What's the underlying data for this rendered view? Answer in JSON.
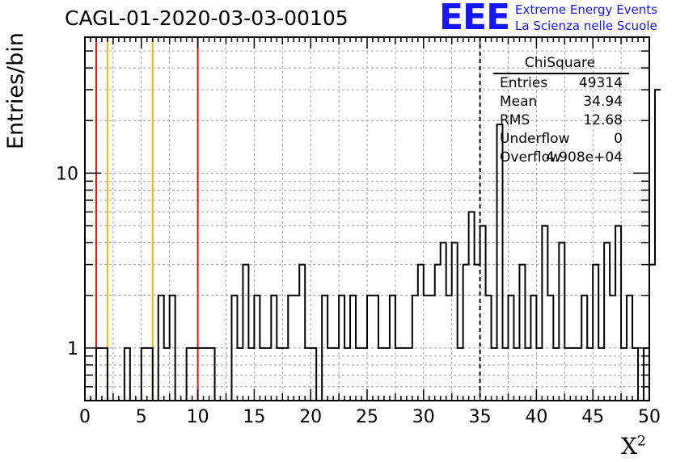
{
  "title": "CAGL-01-2020-03-03-00105",
  "logo": {
    "mark": "EEE",
    "line1": "Extreme Energy Events",
    "line2": "La Scienza nelle Scuole"
  },
  "stats": {
    "title": "ChiSquare",
    "rows": [
      {
        "key": "Entries",
        "value": "49314"
      },
      {
        "key": "Mean",
        "value": "34.94"
      },
      {
        "key": "RMS",
        "value": "12.68"
      },
      {
        "key": "Underflow",
        "value": "0"
      },
      {
        "key": "Overflow",
        "value": "4.908e+04"
      }
    ]
  },
  "colors": {
    "red_line": "#e8140e",
    "yellow_line": "#f5b800",
    "grid": "#a0a0a0",
    "logo": "#1515ff"
  },
  "chart_data": {
    "type": "bar",
    "histogram": true,
    "title": "CAGL-01-2020-03-03-00105",
    "xlabel": "X²",
    "ylabel": "Entries/bin",
    "xlim": [
      0,
      50
    ],
    "ylim": [
      0.5,
      60
    ],
    "y_scale": "log",
    "grid": true,
    "x_ticks": [
      0,
      5,
      10,
      15,
      20,
      25,
      30,
      35,
      40,
      45,
      50
    ],
    "x_tick_labels": [
      "0",
      "5",
      "10",
      "15",
      "20",
      "25",
      "30",
      "35",
      "40",
      "45",
      "50"
    ],
    "y_ticks": [
      1,
      10
    ],
    "y_tick_labels": [
      "1",
      "10"
    ],
    "bin_width": 0.5,
    "bin_edges_start": 0,
    "values": [
      0,
      0,
      1,
      1,
      0,
      0,
      0,
      1,
      0,
      0,
      1,
      1,
      0,
      2,
      1,
      2,
      0,
      0,
      1,
      1,
      1,
      1,
      1,
      0,
      0,
      0,
      2,
      1,
      3,
      1,
      2,
      1,
      1,
      2,
      1,
      1,
      2,
      2,
      3,
      1,
      1,
      0,
      2,
      1,
      1,
      2,
      1,
      2,
      1,
      1,
      2,
      2,
      1,
      1,
      2,
      1,
      1,
      1,
      2,
      3,
      2,
      2,
      3,
      4,
      2,
      4,
      1,
      3,
      6,
      3,
      5,
      2,
      1,
      19,
      1,
      2,
      1,
      3,
      1,
      2,
      1,
      5,
      2,
      1,
      4,
      1,
      1,
      1,
      2,
      1,
      3,
      1,
      4,
      2,
      5,
      1,
      2,
      1,
      0,
      1,
      3,
      30
    ],
    "reference_lines": [
      {
        "x": 1,
        "color": "red",
        "style": "solid"
      },
      {
        "x": 2,
        "color": "yellow",
        "style": "solid"
      },
      {
        "x": 6,
        "color": "yellow",
        "style": "solid"
      },
      {
        "x": 10,
        "color": "red",
        "style": "solid"
      },
      {
        "x": 35,
        "color": "black",
        "style": "dashed"
      }
    ]
  }
}
